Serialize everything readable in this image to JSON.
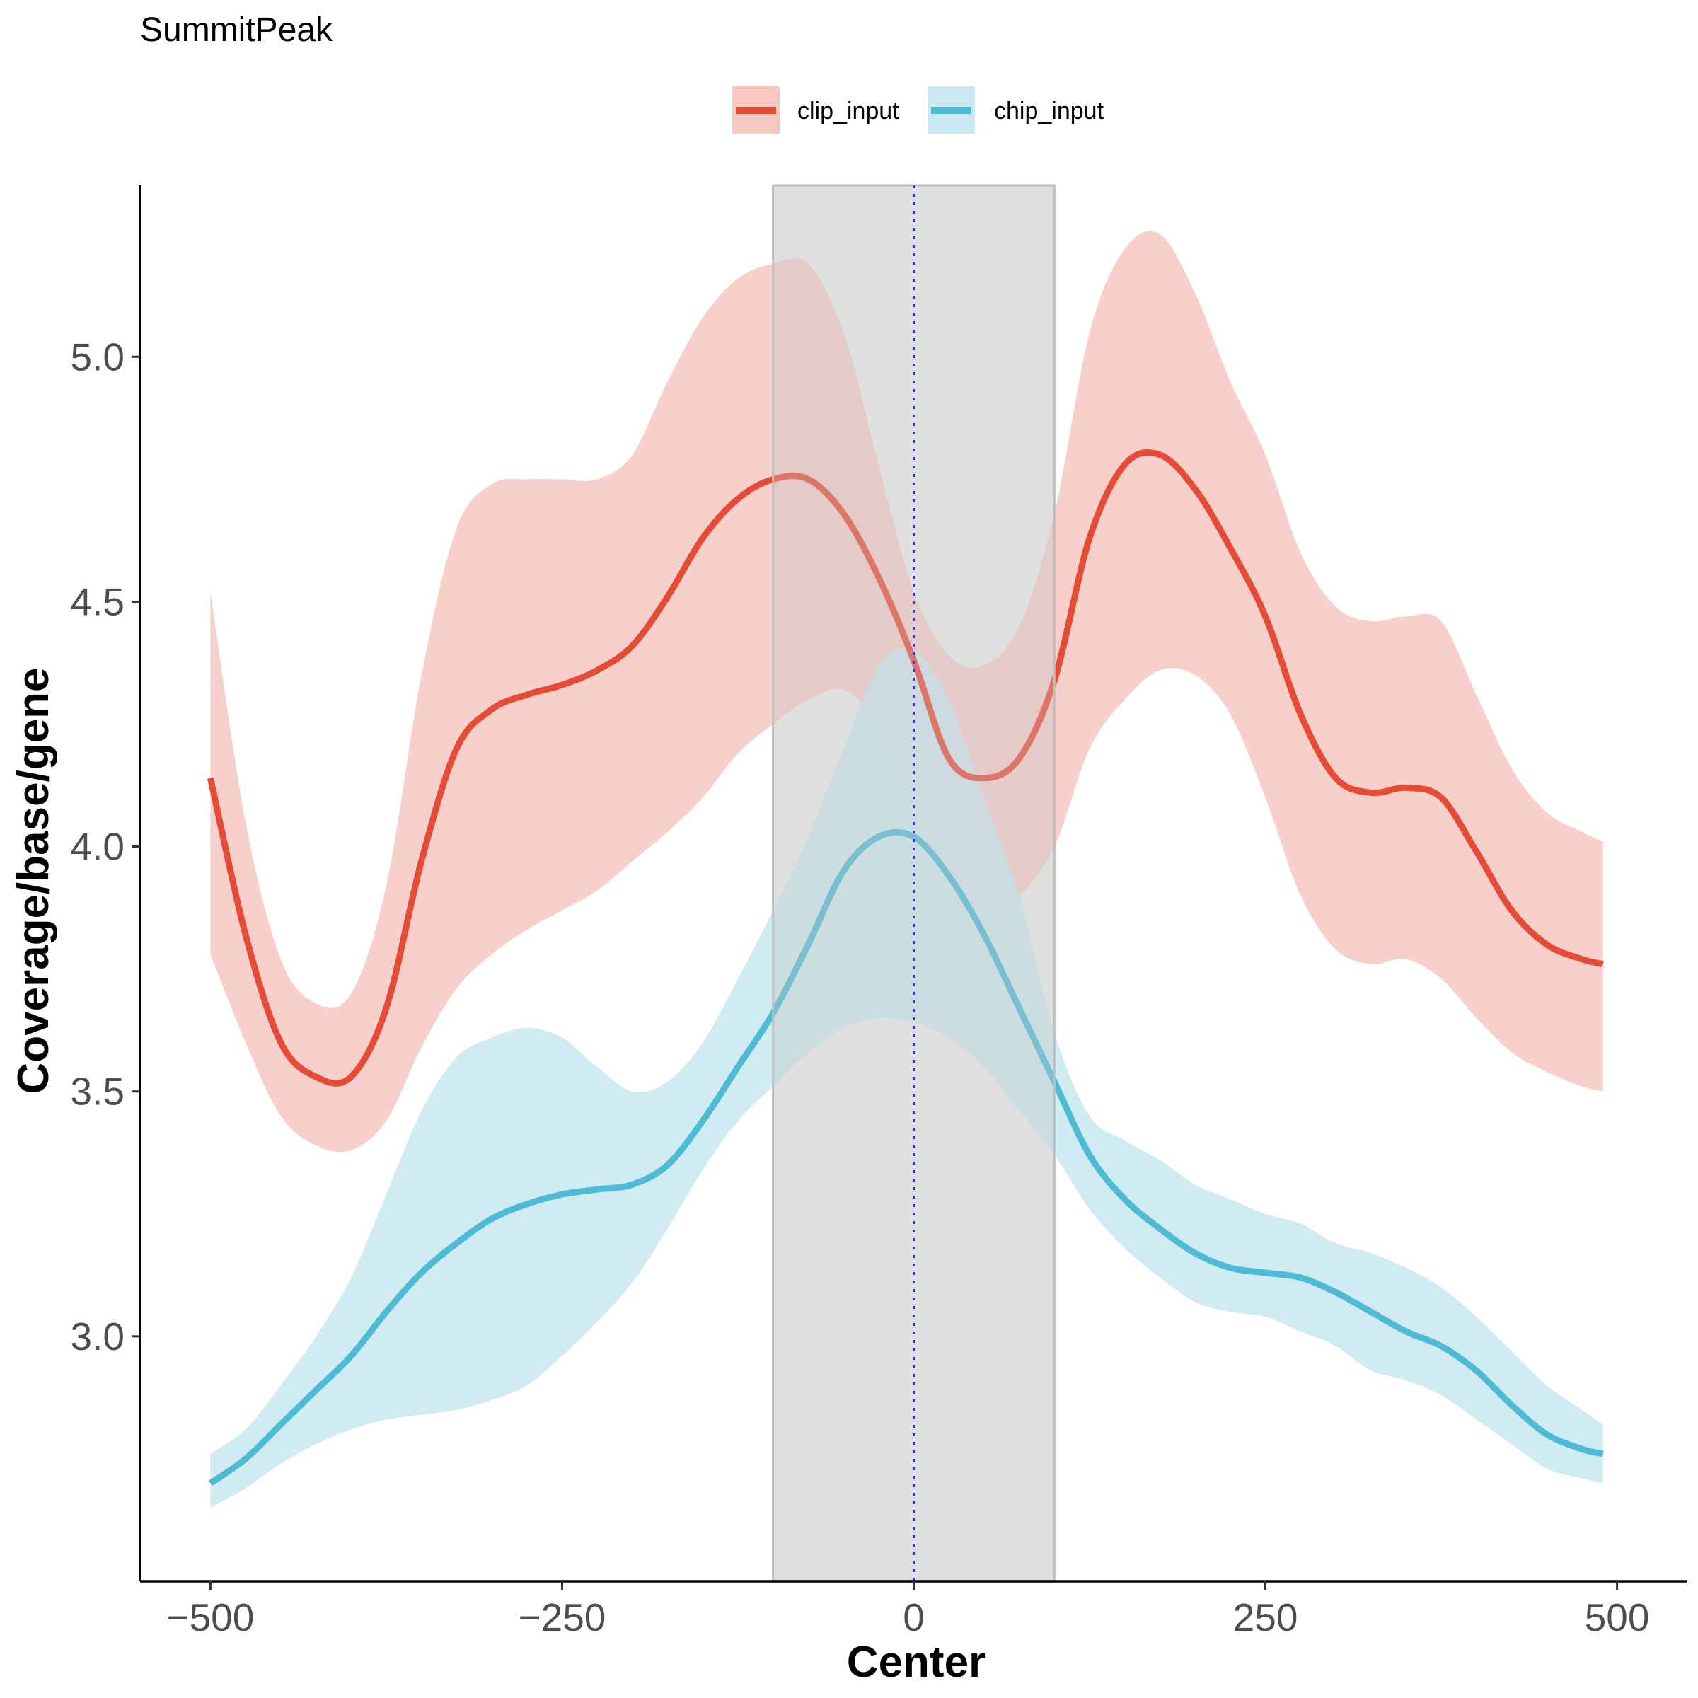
{
  "chart_data": {
    "type": "line",
    "title": "SummitPeak",
    "xlabel": "Center",
    "ylabel": "Coverage/base/gene",
    "xlim": [
      -550,
      550
    ],
    "ylim": [
      2.5,
      5.35
    ],
    "x_ticks": [
      -500,
      -250,
      0,
      250,
      500
    ],
    "x_tick_labels": [
      "−500",
      "−250",
      "0",
      "250",
      "500"
    ],
    "y_ticks": [
      3.0,
      3.5,
      4.0,
      4.5,
      5.0
    ],
    "y_tick_labels": [
      "3.0",
      "3.5",
      "4.0",
      "4.5",
      "5.0"
    ],
    "grid": false,
    "legend_position": "top",
    "highlight_region": {
      "x_start": -100,
      "x_end": 100,
      "fill": "#ebebeb",
      "stroke": "#bebebe"
    },
    "reference_line": {
      "x": 0,
      "style": "dotted",
      "color": "#3333ee"
    },
    "x": [
      -500,
      -475,
      -450,
      -425,
      -400,
      -375,
      -350,
      -325,
      -300,
      -275,
      -250,
      -225,
      -200,
      -175,
      -150,
      -125,
      -100,
      -75,
      -50,
      -25,
      0,
      25,
      50,
      75,
      100,
      125,
      150,
      175,
      200,
      225,
      250,
      275,
      300,
      325,
      350,
      375,
      400,
      425,
      450,
      475,
      490
    ],
    "series": [
      {
        "name": "clip_input",
        "color": "#e64b35",
        "band_color": "#f7c8c2",
        "values": [
          4.14,
          3.82,
          3.6,
          3.53,
          3.53,
          3.67,
          3.97,
          4.2,
          4.28,
          4.31,
          4.33,
          4.36,
          4.41,
          4.51,
          4.63,
          4.71,
          4.75,
          4.75,
          4.68,
          4.55,
          4.38,
          4.18,
          4.14,
          4.18,
          4.34,
          4.63,
          4.78,
          4.8,
          4.73,
          4.61,
          4.47,
          4.27,
          4.14,
          4.11,
          4.12,
          4.1,
          3.99,
          3.87,
          3.8,
          3.77,
          3.76
        ],
        "lower": [
          3.78,
          3.6,
          3.45,
          3.39,
          3.38,
          3.44,
          3.59,
          3.71,
          3.78,
          3.83,
          3.87,
          3.91,
          3.97,
          4.03,
          4.1,
          4.19,
          4.25,
          4.3,
          4.32,
          4.25,
          4.1,
          3.94,
          3.87,
          3.9,
          4.0,
          4.2,
          4.3,
          4.36,
          4.35,
          4.27,
          4.1,
          3.9,
          3.79,
          3.76,
          3.77,
          3.73,
          3.65,
          3.58,
          3.54,
          3.51,
          3.5
        ],
        "upper": [
          4.52,
          4.05,
          3.77,
          3.68,
          3.7,
          3.92,
          4.35,
          4.65,
          4.74,
          4.75,
          4.75,
          4.75,
          4.8,
          4.95,
          5.08,
          5.16,
          5.19,
          5.19,
          5.05,
          4.78,
          4.52,
          4.39,
          4.37,
          4.45,
          4.68,
          5.05,
          5.22,
          5.25,
          5.13,
          4.95,
          4.8,
          4.6,
          4.49,
          4.46,
          4.47,
          4.46,
          4.31,
          4.16,
          4.07,
          4.03,
          4.01
        ]
      },
      {
        "name": "chip_input",
        "color": "#4dbbd5",
        "band_color": "#c9e8f1",
        "values": [
          2.7,
          2.75,
          2.82,
          2.89,
          2.96,
          3.05,
          3.13,
          3.19,
          3.24,
          3.27,
          3.29,
          3.3,
          3.31,
          3.35,
          3.44,
          3.55,
          3.66,
          3.8,
          3.95,
          4.02,
          4.02,
          3.94,
          3.82,
          3.67,
          3.52,
          3.37,
          3.28,
          3.22,
          3.17,
          3.14,
          3.13,
          3.12,
          3.09,
          3.05,
          3.01,
          2.98,
          2.93,
          2.86,
          2.8,
          2.77,
          2.76
        ],
        "lower": [
          2.65,
          2.69,
          2.74,
          2.78,
          2.81,
          2.83,
          2.84,
          2.85,
          2.87,
          2.9,
          2.96,
          3.03,
          3.11,
          3.22,
          3.34,
          3.44,
          3.51,
          3.58,
          3.63,
          3.65,
          3.64,
          3.61,
          3.55,
          3.46,
          3.37,
          3.26,
          3.18,
          3.12,
          3.07,
          3.05,
          3.04,
          3.01,
          2.98,
          2.93,
          2.91,
          2.88,
          2.83,
          2.78,
          2.73,
          2.71,
          2.7
        ],
        "upper": [
          2.76,
          2.81,
          2.9,
          3.0,
          3.12,
          3.29,
          3.46,
          3.57,
          3.61,
          3.63,
          3.61,
          3.55,
          3.5,
          3.52,
          3.6,
          3.73,
          3.87,
          4.02,
          4.2,
          4.37,
          4.4,
          4.3,
          4.1,
          3.9,
          3.62,
          3.45,
          3.4,
          3.36,
          3.31,
          3.28,
          3.25,
          3.23,
          3.19,
          3.17,
          3.14,
          3.1,
          3.04,
          2.97,
          2.9,
          2.85,
          2.82
        ]
      }
    ]
  }
}
